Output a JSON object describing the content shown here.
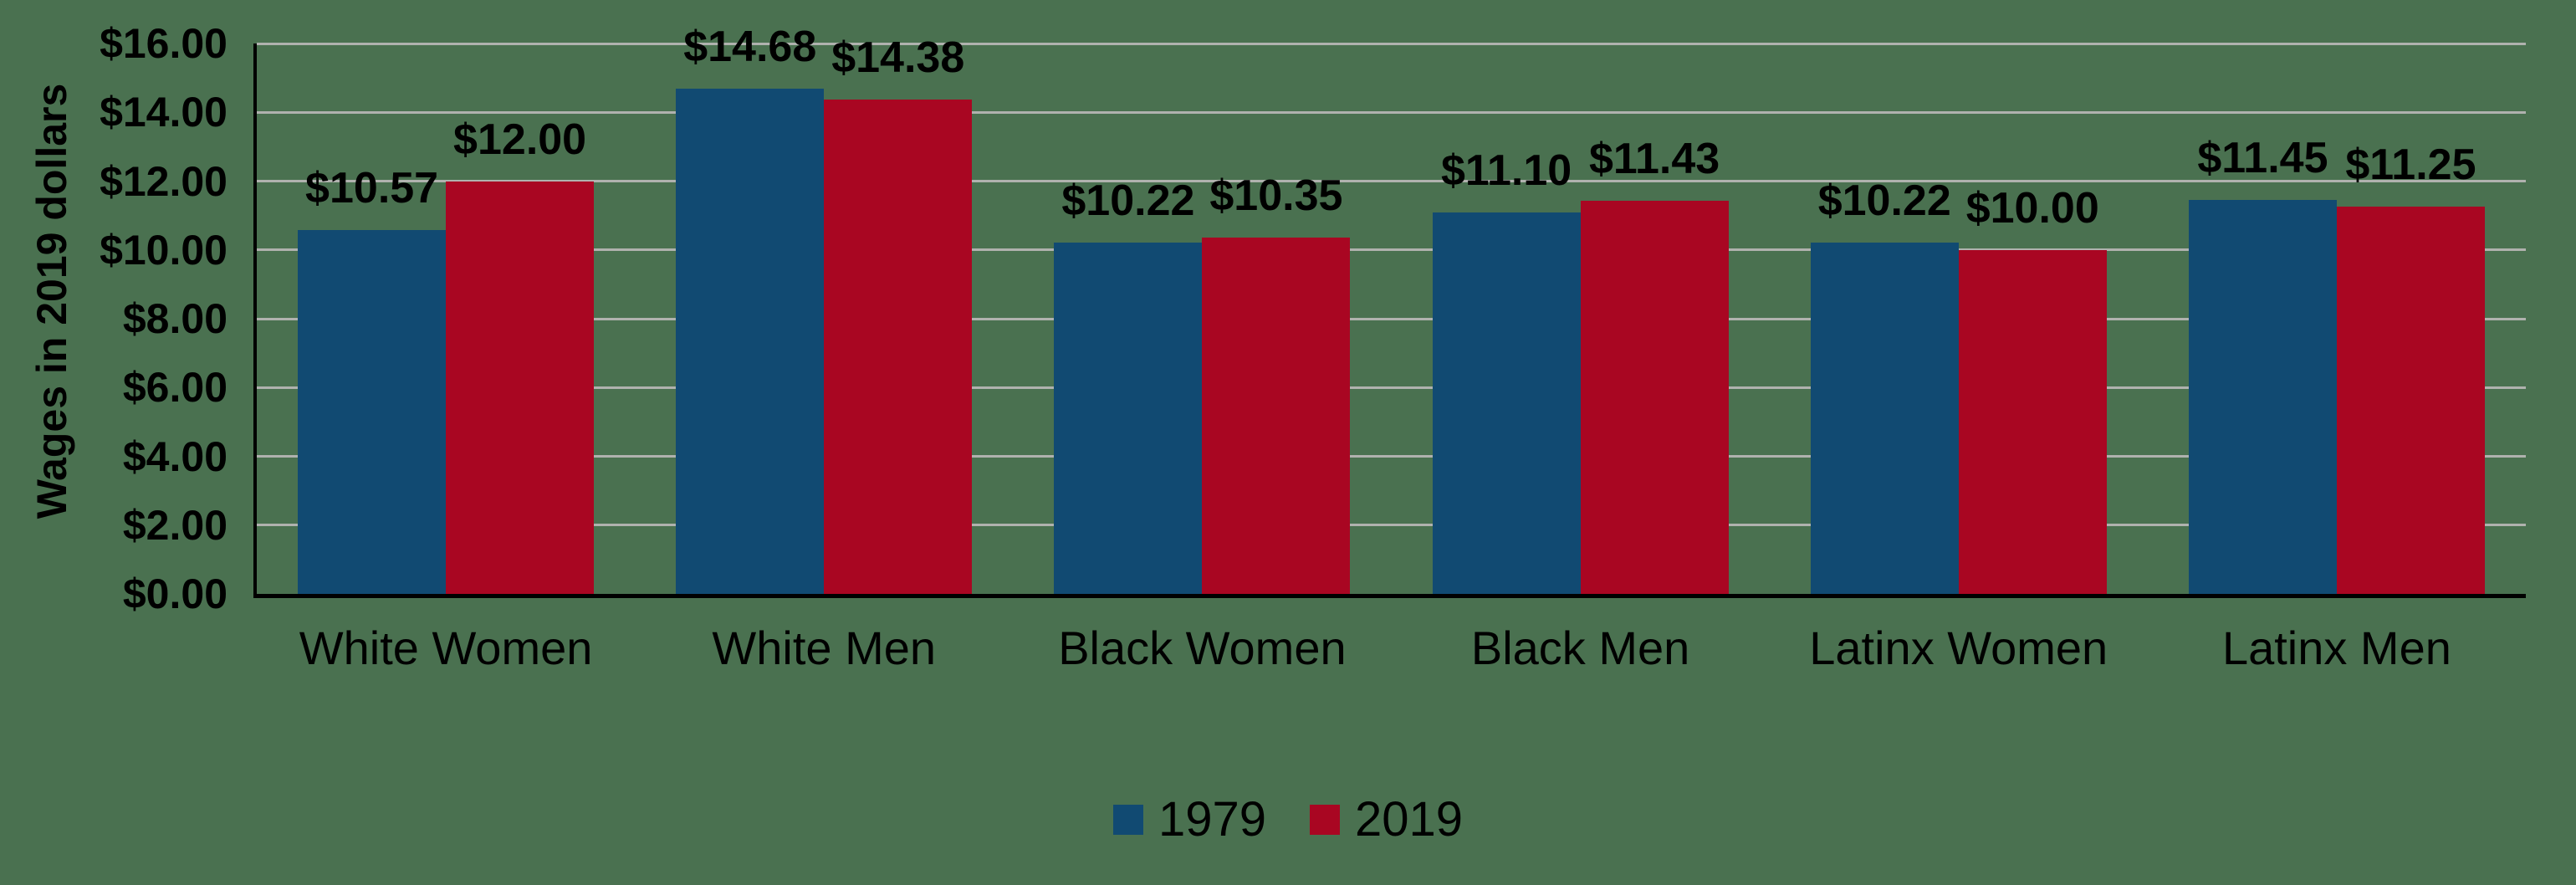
{
  "colors": {
    "background": "#4a7150",
    "gridline": "#b0b2ae",
    "axis": "#000000",
    "text": "#000000"
  },
  "chart_data": {
    "type": "bar",
    "title": "",
    "xlabel": "",
    "ylabel": "Wages in 2019 dollars",
    "categories": [
      "White Women",
      "White Men",
      "Black Women",
      "Black Men",
      "Latinx Women",
      "Latinx Men"
    ],
    "series": [
      {
        "name": "1979",
        "color": "#114a72",
        "values": [
          10.57,
          14.68,
          10.22,
          11.1,
          10.22,
          11.45
        ],
        "labels": [
          "$10.57",
          "$14.68",
          "$10.22",
          "$11.10",
          "$10.22",
          "$11.45"
        ]
      },
      {
        "name": "2019",
        "color": "#a90622",
        "values": [
          12.0,
          14.38,
          10.35,
          11.43,
          10.0,
          11.25
        ],
        "labels": [
          "$12.00",
          "$14.38",
          "$10.35",
          "$11.43",
          "$10.00",
          "$11.25"
        ]
      }
    ],
    "ylim": [
      0,
      16
    ],
    "ytick_step": 2,
    "yticks": [
      "$0.00",
      "$2.00",
      "$4.00",
      "$6.00",
      "$8.00",
      "$10.00",
      "$12.00",
      "$14.00",
      "$16.00"
    ],
    "grid": true,
    "legend_position": "bottom-center",
    "value_label_format": "currency-2dp"
  }
}
